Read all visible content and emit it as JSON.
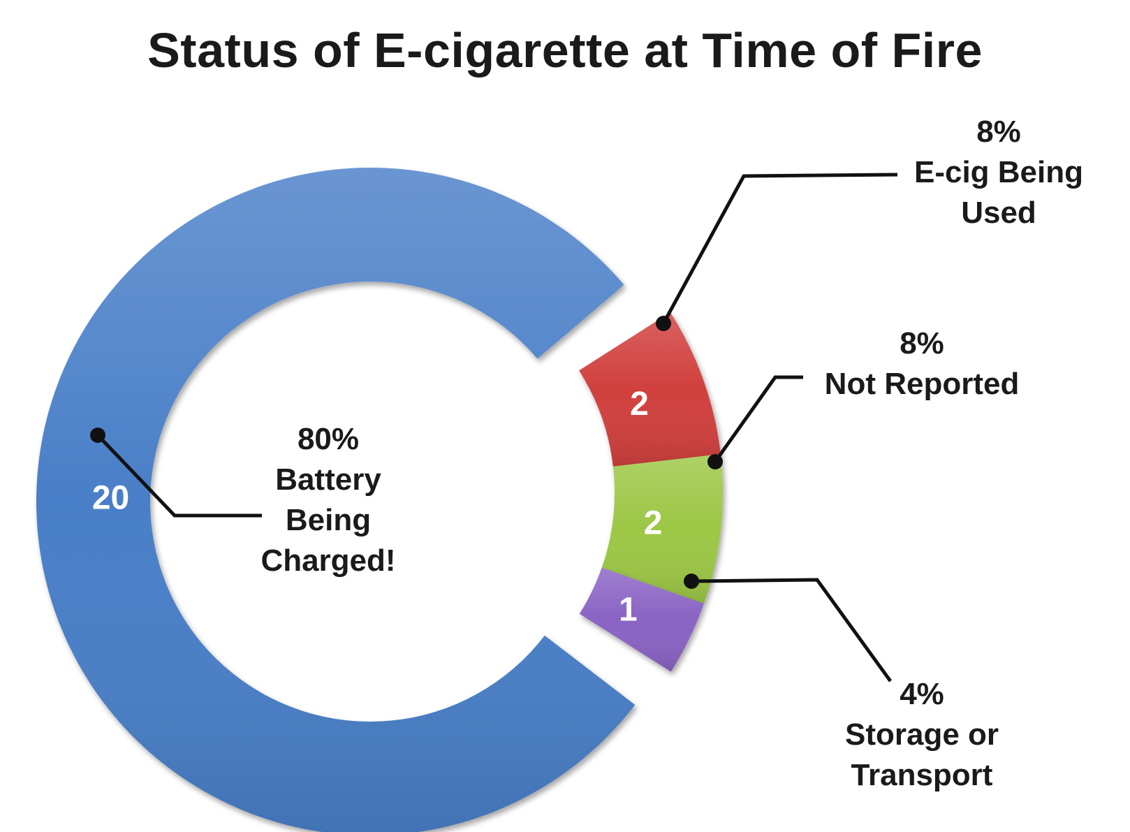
{
  "chart_data": {
    "type": "pie",
    "title": "Status of E-cigarette at Time of Fire",
    "slices": [
      {
        "label_lines": [
          "Battery",
          "Being",
          "Charged!"
        ],
        "value": 20,
        "percent": "80%",
        "color": "#4a7fc8"
      },
      {
        "label_lines": [
          "E-cig Being",
          "Used"
        ],
        "value": 2,
        "percent": "8%",
        "color": "#d0403c"
      },
      {
        "label_lines": [
          "Not Reported"
        ],
        "value": 2,
        "percent": "8%",
        "color": "#9cc745"
      },
      {
        "label_lines": [
          "Storage or",
          "Transport"
        ],
        "value": 1,
        "percent": "4%",
        "color": "#8a63c4"
      }
    ]
  }
}
